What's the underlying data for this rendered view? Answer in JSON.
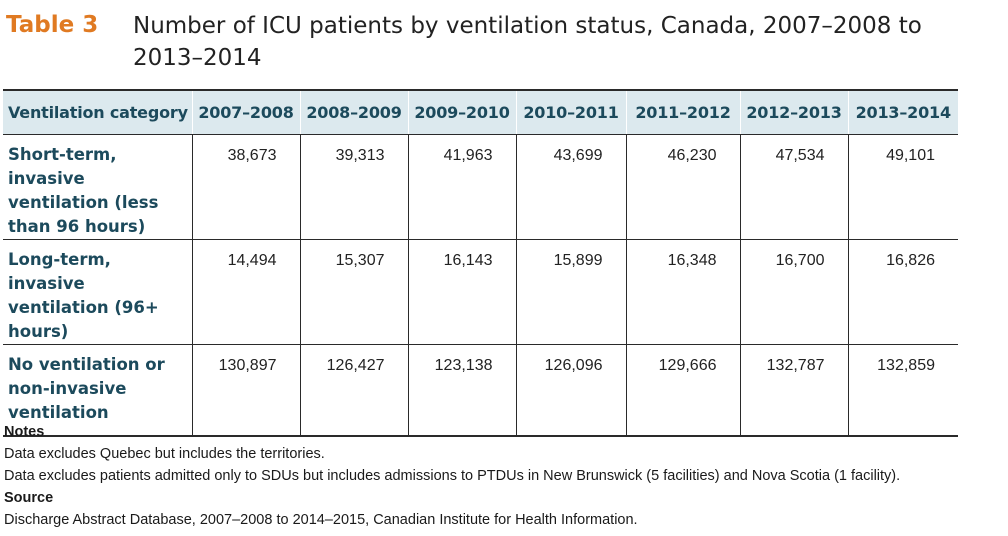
{
  "caption": {
    "label": "Table 3",
    "title": "Number of ICU patients by ventilation status, Canada, 2007–2008 to 2013–2014"
  },
  "table": {
    "header": {
      "category": "Ventilation category",
      "years": [
        "2007–2008",
        "2008–2009",
        "2009–2010",
        "2010–2011",
        "2011–2012",
        "2012–2013",
        "2013–2014"
      ]
    },
    "rows": [
      {
        "label": "Short-term, invasive ventilation (less than 96 hours)",
        "values": [
          "38,673",
          "39,313",
          "41,963",
          "43,699",
          "46,230",
          "47,534",
          "49,101"
        ]
      },
      {
        "label": "Long-term, invasive ventilation (96+ hours)",
        "values": [
          "14,494",
          "15,307",
          "16,143",
          "15,899",
          "16,348",
          "16,700",
          "16,826"
        ]
      },
      {
        "label": "No ventilation or non-invasive ventilation",
        "values": [
          "130,897",
          "126,427",
          "123,138",
          "126,096",
          "129,666",
          "132,787",
          "132,859"
        ]
      }
    ]
  },
  "notes": {
    "heading": "Notes",
    "lines": [
      "Data excludes Quebec but includes the territories.",
      "Data excludes patients admitted only to SDUs but includes admissions to PTDUs in New Brunswick (5 facilities) and Nova Scotia (1 facility)."
    ]
  },
  "source": {
    "heading": "Source",
    "text": "Discharge Abstract Database, 2007–2008 to 2014–2015, Canadian Institute for Health Information."
  },
  "colors": {
    "label_orange": "#e07a22",
    "header_bg": "#dce9ee",
    "header_text": "#1c4a5c"
  }
}
